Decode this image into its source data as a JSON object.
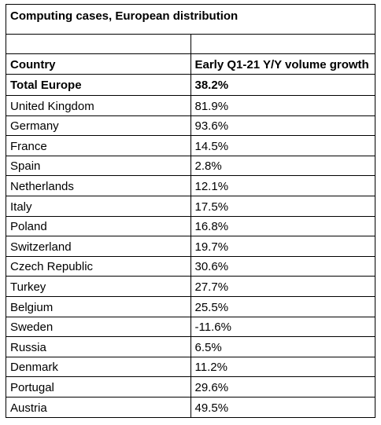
{
  "table": {
    "title": "Computing cases, European distribution",
    "headers": {
      "country": "Country",
      "growth": "Early Q1-21 Y/Y volume growth"
    },
    "total": {
      "country": "Total Europe",
      "growth": "38.2%"
    },
    "rows": [
      {
        "country": "United Kingdom",
        "growth": "81.9%"
      },
      {
        "country": "Germany",
        "growth": "93.6%"
      },
      {
        "country": "France",
        "growth": "14.5%"
      },
      {
        "country": "Spain",
        "growth": "2.8%"
      },
      {
        "country": "Netherlands",
        "growth": "12.1%"
      },
      {
        "country": "Italy",
        "growth": "17.5%"
      },
      {
        "country": "Poland",
        "growth": "16.8%"
      },
      {
        "country": "Switzerland",
        "growth": "19.7%"
      },
      {
        "country": "Czech Republic",
        "growth": "30.6%"
      },
      {
        "country": "Turkey",
        "growth": "27.7%"
      },
      {
        "country": "Belgium",
        "growth": "25.5%"
      },
      {
        "country": "Sweden",
        "growth": "-11.6%"
      },
      {
        "country": "Russia",
        "growth": "6.5%"
      },
      {
        "country": "Denmark",
        "growth": "11.2%"
      },
      {
        "country": "Portugal",
        "growth": "29.6%"
      },
      {
        "country": "Austria",
        "growth": "49.5%"
      }
    ]
  }
}
